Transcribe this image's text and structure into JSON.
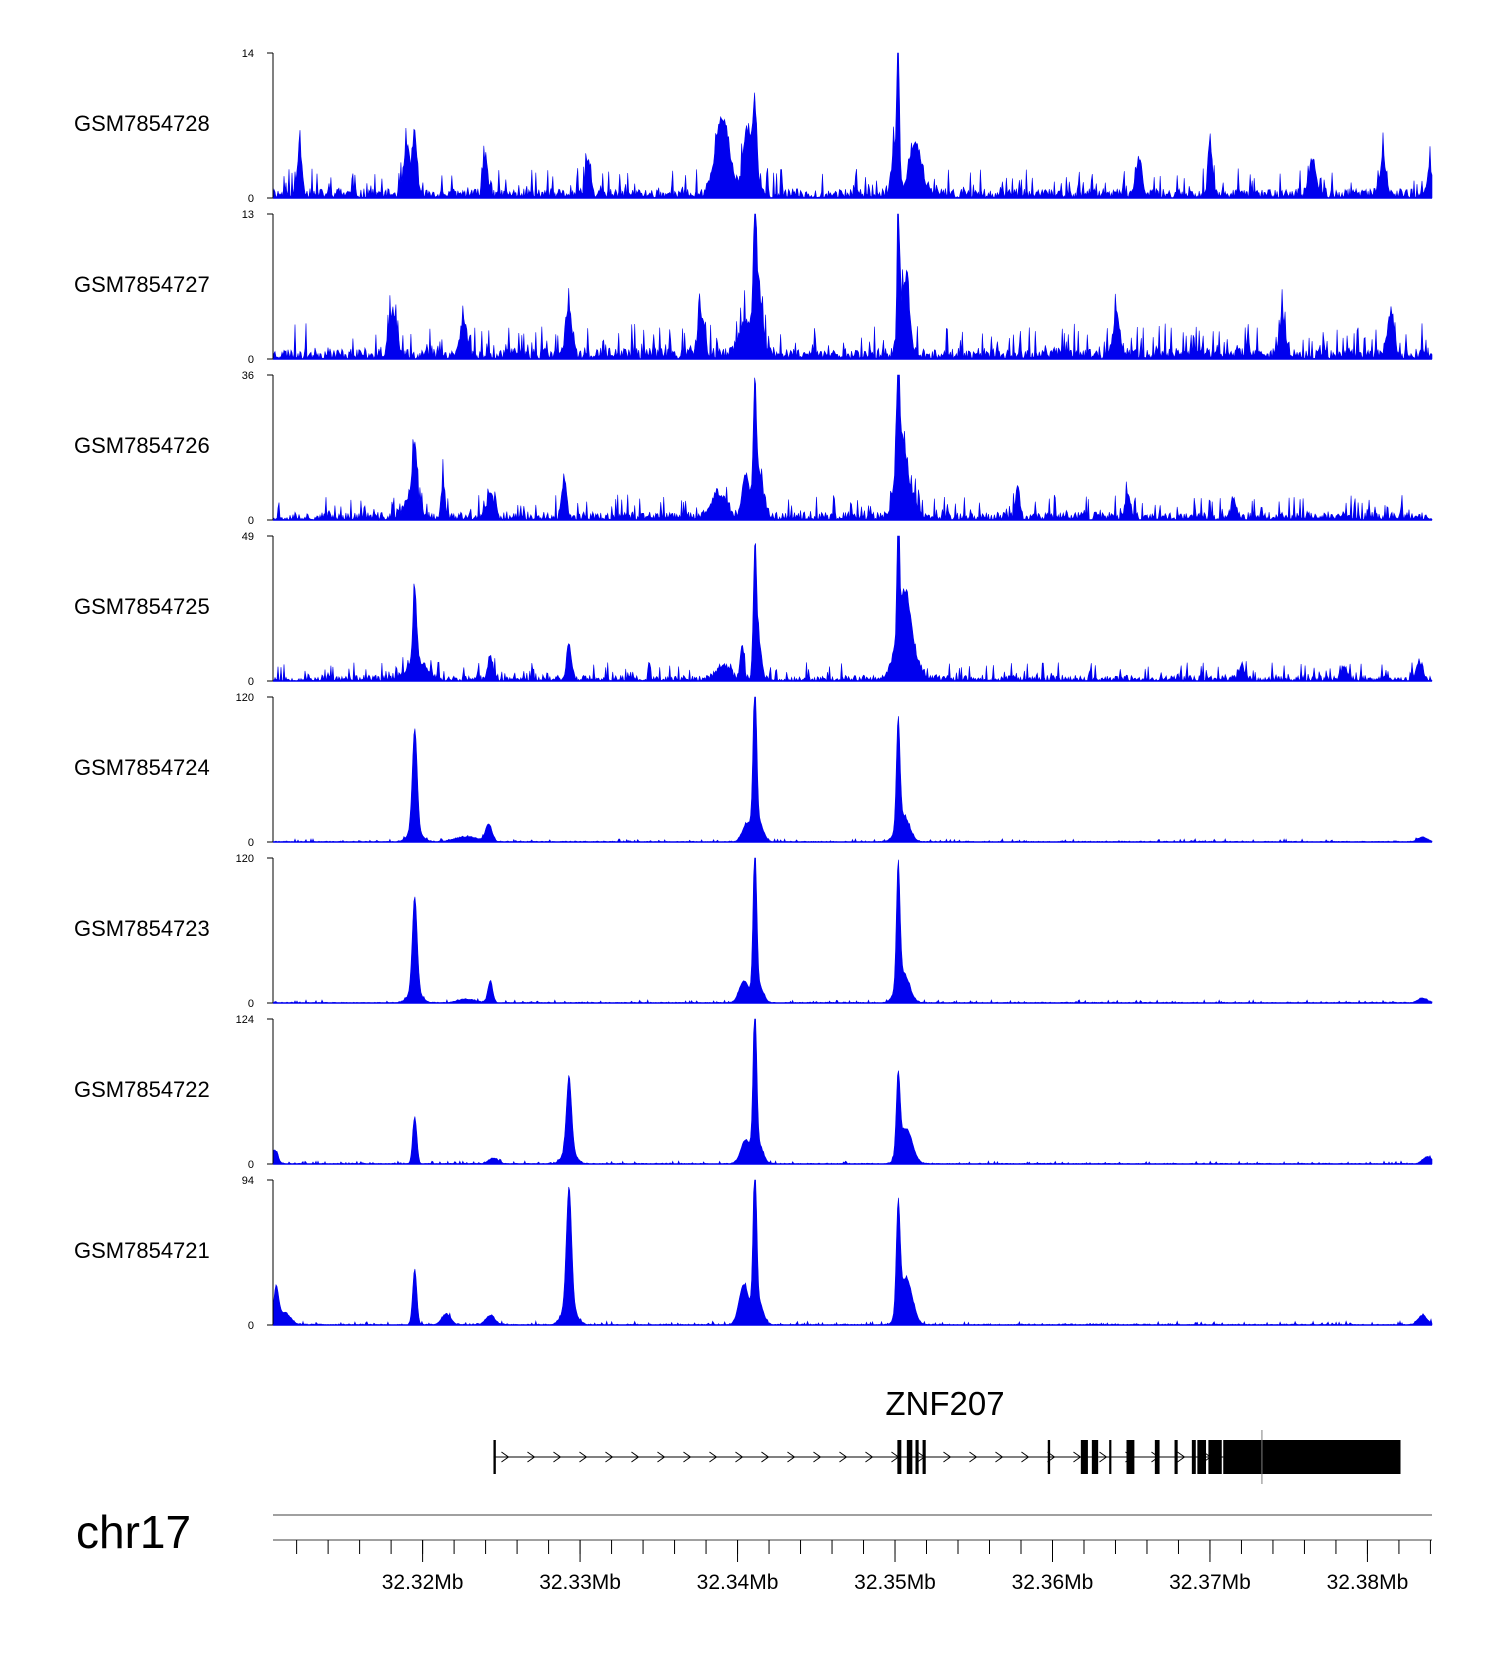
{
  "chart_data": {
    "type": "area",
    "title": "",
    "chromosome": "chr17",
    "fill_color": "#0000ee",
    "x_range_mb": [
      32.3105,
      32.3841
    ],
    "x_ticks": [
      {
        "value": 32.32,
        "label": "32.32Mb"
      },
      {
        "value": 32.33,
        "label": "32.33Mb"
      },
      {
        "value": 32.34,
        "label": "32.34Mb"
      },
      {
        "value": 32.35,
        "label": "32.35Mb"
      },
      {
        "value": 32.36,
        "label": "32.36Mb"
      },
      {
        "value": 32.37,
        "label": "32.37Mb"
      },
      {
        "value": 32.38,
        "label": "32.38Mb"
      }
    ],
    "tracks": [
      {
        "name": "GSM7854728",
        "ymin": 0,
        "ymax": 14,
        "ymin_label": "0",
        "ymax_label": "14",
        "noise": 0.9,
        "spiky": 1.8,
        "seed": 11,
        "peaks": [
          [
            32.3122,
            4.5,
            0.00015
          ],
          [
            32.319,
            4.5,
            0.0002
          ],
          [
            32.3195,
            6.2,
            0.00012
          ],
          [
            32.324,
            3.5,
            0.00015
          ],
          [
            32.3305,
            3.4,
            0.00015
          ],
          [
            32.339,
            4.5,
            0.0004
          ],
          [
            32.3406,
            6.0,
            0.00025
          ],
          [
            32.3411,
            7.8,
            0.00015
          ],
          [
            32.3391,
            3.0,
            0.0005
          ],
          [
            32.35,
            5.0,
            0.0002
          ],
          [
            32.3502,
            14.0,
            7e-05
          ],
          [
            32.3513,
            5.0,
            0.0004
          ],
          [
            32.3655,
            3.3,
            0.0002
          ],
          [
            32.37,
            5.5,
            0.00012
          ],
          [
            32.3765,
            3.5,
            0.0002
          ],
          [
            32.381,
            3.5,
            0.0002
          ],
          [
            32.384,
            2.5,
            0.0002
          ]
        ]
      },
      {
        "name": "GSM7854727",
        "ymin": 0,
        "ymax": 13,
        "ymin_label": "0",
        "ymax_label": "13",
        "noise": 1.0,
        "spiky": 1.8,
        "seed": 23,
        "peaks": [
          [
            32.3181,
            3.8,
            0.0002
          ],
          [
            32.3226,
            3.2,
            0.0002
          ],
          [
            32.3293,
            3.8,
            0.0002
          ],
          [
            32.3377,
            3.5,
            0.0002
          ],
          [
            32.3405,
            3.0,
            0.0004
          ],
          [
            32.3411,
            9.2,
            9e-05
          ],
          [
            32.3413,
            6.0,
            0.00025
          ],
          [
            32.3502,
            13.0,
            7e-05
          ],
          [
            32.3506,
            6.0,
            0.0003
          ],
          [
            32.3641,
            3.5,
            0.0002
          ],
          [
            32.3746,
            3.5,
            0.0002
          ],
          [
            32.3815,
            3.8,
            0.0002
          ]
        ]
      },
      {
        "name": "GSM7854726",
        "ymin": 0,
        "ymax": 36,
        "ymin_label": "0",
        "ymax_label": "36",
        "noise": 2.0,
        "spiky": 1.6,
        "seed": 37,
        "peaks": [
          [
            32.3195,
            14.0,
            0.00012
          ],
          [
            32.3193,
            6.0,
            0.0004
          ],
          [
            32.3213,
            9.0,
            0.00012
          ],
          [
            32.3243,
            6.0,
            0.0002
          ],
          [
            32.329,
            10.0,
            0.00015
          ],
          [
            32.3388,
            6.0,
            0.0005
          ],
          [
            32.3405,
            10.0,
            0.0002
          ],
          [
            32.3411,
            25.0,
            9e-05
          ],
          [
            32.3413,
            12.0,
            0.0003
          ],
          [
            32.3502,
            36.0,
            7e-05
          ],
          [
            32.3503,
            15.0,
            0.0003
          ],
          [
            32.3507,
            8.0,
            0.0005
          ],
          [
            32.3578,
            8.0,
            0.00012
          ],
          [
            32.3648,
            6.0,
            0.00015
          ],
          [
            32.3715,
            5.0,
            0.00015
          ]
        ]
      },
      {
        "name": "GSM7854725",
        "ymin": 0,
        "ymax": 49,
        "ymin_label": "0",
        "ymax_label": "49",
        "noise": 2.0,
        "spiky": 1.4,
        "seed": 53,
        "peaks": [
          [
            32.3195,
            24.0,
            0.00012
          ],
          [
            32.3197,
            6.0,
            0.0006
          ],
          [
            32.3243,
            8.0,
            0.00015
          ],
          [
            32.3293,
            12.0,
            0.00015
          ],
          [
            32.3391,
            5.0,
            0.0004
          ],
          [
            32.3403,
            12.0,
            0.00012
          ],
          [
            32.3411,
            36.0,
            0.0001
          ],
          [
            32.3413,
            14.0,
            0.0002
          ],
          [
            32.3502,
            49.0,
            7e-05
          ],
          [
            32.3506,
            22.0,
            0.0004
          ],
          [
            32.3507,
            8.0,
            0.0007
          ],
          [
            32.372,
            5.0,
            0.00015
          ],
          [
            32.3785,
            4.0,
            0.0002
          ],
          [
            32.3833,
            6.0,
            0.0002
          ]
        ]
      },
      {
        "name": "GSM7854724",
        "ymin": 0,
        "ymax": 120,
        "ymin_label": "0",
        "ymax_label": "120",
        "noise": 0.8,
        "spiky": 1.0,
        "seed": 71,
        "peaks": [
          [
            32.3195,
            84.0,
            0.00015
          ],
          [
            32.3195,
            10.0,
            0.0004
          ],
          [
            32.3242,
            14.0,
            0.0002
          ],
          [
            32.3228,
            4.0,
            0.0008
          ],
          [
            32.3406,
            14.0,
            0.0003
          ],
          [
            32.3411,
            120.0,
            0.00011
          ],
          [
            32.3413,
            18.0,
            0.0003
          ],
          [
            32.3502,
            88.0,
            0.00011
          ],
          [
            32.3505,
            22.0,
            0.0004
          ],
          [
            32.3835,
            4.0,
            0.0003
          ]
        ]
      },
      {
        "name": "GSM7854723",
        "ymin": 0,
        "ymax": 120,
        "ymin_label": "0",
        "ymax_label": "120",
        "noise": 0.8,
        "spiky": 1.0,
        "seed": 89,
        "peaks": [
          [
            32.3195,
            78.0,
            0.00015
          ],
          [
            32.3195,
            10.0,
            0.0004
          ],
          [
            32.3243,
            18.0,
            0.00015
          ],
          [
            32.3228,
            3.0,
            0.0006
          ],
          [
            32.3404,
            18.0,
            0.0003
          ],
          [
            32.3411,
            120.0,
            0.00011
          ],
          [
            32.3413,
            16.0,
            0.0003
          ],
          [
            32.3502,
            100.0,
            0.00011
          ],
          [
            32.3505,
            25.0,
            0.0004
          ],
          [
            32.3835,
            4.0,
            0.0003
          ]
        ]
      },
      {
        "name": "GSM7854722",
        "ymin": 0,
        "ymax": 124,
        "ymin_label": "0",
        "ymax_label": "124",
        "noise": 0.8,
        "spiky": 1.0,
        "seed": 97,
        "peaks": [
          [
            32.3106,
            12.0,
            0.0002
          ],
          [
            32.3195,
            40.0,
            0.00013
          ],
          [
            32.3245,
            5.0,
            0.0003
          ],
          [
            32.3293,
            62.0,
            0.00016
          ],
          [
            32.3293,
            12.0,
            0.0004
          ],
          [
            32.3405,
            20.0,
            0.0003
          ],
          [
            32.3411,
            124.0,
            0.00011
          ],
          [
            32.3413,
            18.0,
            0.0003
          ],
          [
            32.3502,
            66.0,
            0.00012
          ],
          [
            32.3507,
            30.0,
            0.0004
          ],
          [
            32.3838,
            6.0,
            0.0003
          ]
        ]
      },
      {
        "name": "GSM7854721",
        "ymin": 0,
        "ymax": 94,
        "ymin_label": "0",
        "ymax_label": "94",
        "noise": 0.8,
        "spiky": 1.0,
        "seed": 131,
        "peaks": [
          [
            32.3107,
            22.0,
            0.00015
          ],
          [
            32.3112,
            8.0,
            0.0004
          ],
          [
            32.3195,
            36.0,
            0.00013
          ],
          [
            32.3215,
            7.0,
            0.0003
          ],
          [
            32.3243,
            6.0,
            0.0003
          ],
          [
            32.3293,
            76.0,
            0.00016
          ],
          [
            32.3293,
            14.0,
            0.0004
          ],
          [
            32.3404,
            26.0,
            0.0003
          ],
          [
            32.3411,
            94.0,
            0.00011
          ],
          [
            32.3413,
            16.0,
            0.0003
          ],
          [
            32.3502,
            68.0,
            0.00012
          ],
          [
            32.3507,
            30.0,
            0.0004
          ],
          [
            32.3835,
            6.0,
            0.0003
          ]
        ]
      }
    ],
    "gene": {
      "name": "ZNF207",
      "strand": "+",
      "start_mb": 32.3245,
      "end_mb": 32.3821,
      "exons_mb": [
        [
          32.3245,
          32.32465
        ],
        [
          32.35015,
          32.3504
        ],
        [
          32.35075,
          32.3511
        ],
        [
          32.3513,
          32.3515
        ],
        [
          32.35175,
          32.35195
        ],
        [
          32.3597,
          32.35985
        ],
        [
          32.3618,
          32.36225
        ],
        [
          32.3625,
          32.3629
        ],
        [
          32.3636,
          32.3637
        ],
        [
          32.3647,
          32.3652
        ],
        [
          32.3665,
          32.3668
        ],
        [
          32.36775,
          32.36795
        ],
        [
          32.36885,
          32.3691
        ],
        [
          32.3692,
          32.36975
        ],
        [
          32.3699,
          32.37075
        ],
        [
          32.37085,
          32.37155
        ]
      ],
      "cds_block_mb": [
        32.37085,
        32.3821
      ],
      "tss_tick_mb": 32.3733
    }
  }
}
